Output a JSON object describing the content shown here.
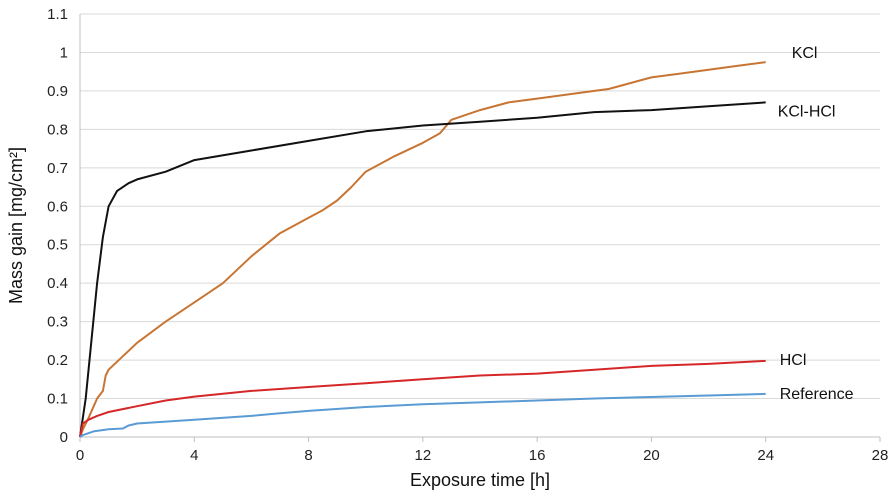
{
  "chart_data": {
    "type": "line",
    "xlabel": "Exposure time [h]",
    "ylabel": "Mass gain [mg/cm²]",
    "xlim": [
      0,
      28
    ],
    "ylim": [
      0,
      1.1
    ],
    "x_ticks": [
      0,
      4,
      8,
      12,
      16,
      20,
      24,
      28
    ],
    "y_ticks": [
      0,
      0.1,
      0.2,
      0.3,
      0.4,
      0.5,
      0.6,
      0.7,
      0.8,
      0.9,
      1,
      1.1
    ],
    "grid": "horizontal",
    "legend": "none (series labeled at line ends)",
    "series": [
      {
        "name": "KCl",
        "color": "#c87533",
        "points": [
          [
            0,
            0
          ],
          [
            0.1,
            0.02
          ],
          [
            0.3,
            0.05
          ],
          [
            0.6,
            0.1
          ],
          [
            0.8,
            0.12
          ],
          [
            0.9,
            0.16
          ],
          [
            1.0,
            0.175
          ],
          [
            1.5,
            0.21
          ],
          [
            2,
            0.245
          ],
          [
            3,
            0.3
          ],
          [
            4,
            0.35
          ],
          [
            4.5,
            0.375
          ],
          [
            5,
            0.4
          ],
          [
            6,
            0.47
          ],
          [
            6.5,
            0.5
          ],
          [
            7,
            0.53
          ],
          [
            8,
            0.57
          ],
          [
            8.5,
            0.59
          ],
          [
            9,
            0.615
          ],
          [
            9.5,
            0.65
          ],
          [
            10,
            0.69
          ],
          [
            11,
            0.73
          ],
          [
            12,
            0.765
          ],
          [
            12.6,
            0.79
          ],
          [
            13,
            0.825
          ],
          [
            14,
            0.85
          ],
          [
            15,
            0.87
          ],
          [
            16,
            0.88
          ],
          [
            17,
            0.89
          ],
          [
            18,
            0.9
          ],
          [
            18.5,
            0.905
          ],
          [
            19,
            0.915
          ],
          [
            20,
            0.935
          ],
          [
            21,
            0.945
          ],
          [
            22,
            0.955
          ],
          [
            23,
            0.965
          ],
          [
            24,
            0.975
          ]
        ]
      },
      {
        "name": "KCl-HCl",
        "color": "#111111",
        "points": [
          [
            0,
            0
          ],
          [
            0.2,
            0.1
          ],
          [
            0.4,
            0.25
          ],
          [
            0.6,
            0.4
          ],
          [
            0.8,
            0.52
          ],
          [
            1.0,
            0.6
          ],
          [
            1.3,
            0.64
          ],
          [
            1.7,
            0.66
          ],
          [
            2,
            0.67
          ],
          [
            3,
            0.69
          ],
          [
            4,
            0.72
          ],
          [
            6,
            0.745
          ],
          [
            8,
            0.77
          ],
          [
            10,
            0.795
          ],
          [
            12,
            0.81
          ],
          [
            14,
            0.82
          ],
          [
            16,
            0.83
          ],
          [
            18,
            0.845
          ],
          [
            20,
            0.85
          ],
          [
            22,
            0.86
          ],
          [
            24,
            0.87
          ]
        ]
      },
      {
        "name": "HCl",
        "color": "#d62728",
        "points": [
          [
            0,
            0
          ],
          [
            0.1,
            0.035
          ],
          [
            0.3,
            0.045
          ],
          [
            0.6,
            0.055
          ],
          [
            1,
            0.065
          ],
          [
            2,
            0.08
          ],
          [
            3,
            0.095
          ],
          [
            4,
            0.105
          ],
          [
            6,
            0.12
          ],
          [
            8,
            0.13
          ],
          [
            10,
            0.14
          ],
          [
            12,
            0.15
          ],
          [
            14,
            0.16
          ],
          [
            16,
            0.165
          ],
          [
            18,
            0.175
          ],
          [
            20,
            0.185
          ],
          [
            22,
            0.19
          ],
          [
            24,
            0.198
          ]
        ]
      },
      {
        "name": "Reference",
        "color": "#5b9bd5",
        "points": [
          [
            0,
            0
          ],
          [
            0.1,
            0.005
          ],
          [
            0.5,
            0.015
          ],
          [
            1,
            0.02
          ],
          [
            1.5,
            0.022
          ],
          [
            1.7,
            0.03
          ],
          [
            2,
            0.035
          ],
          [
            4,
            0.045
          ],
          [
            6,
            0.055
          ],
          [
            7,
            0.062
          ],
          [
            8,
            0.068
          ],
          [
            10,
            0.078
          ],
          [
            12,
            0.085
          ],
          [
            14,
            0.09
          ],
          [
            16,
            0.095
          ],
          [
            18,
            0.1
          ],
          [
            20,
            0.104
          ],
          [
            22,
            0.108
          ],
          [
            24,
            0.112
          ]
        ]
      }
    ]
  }
}
